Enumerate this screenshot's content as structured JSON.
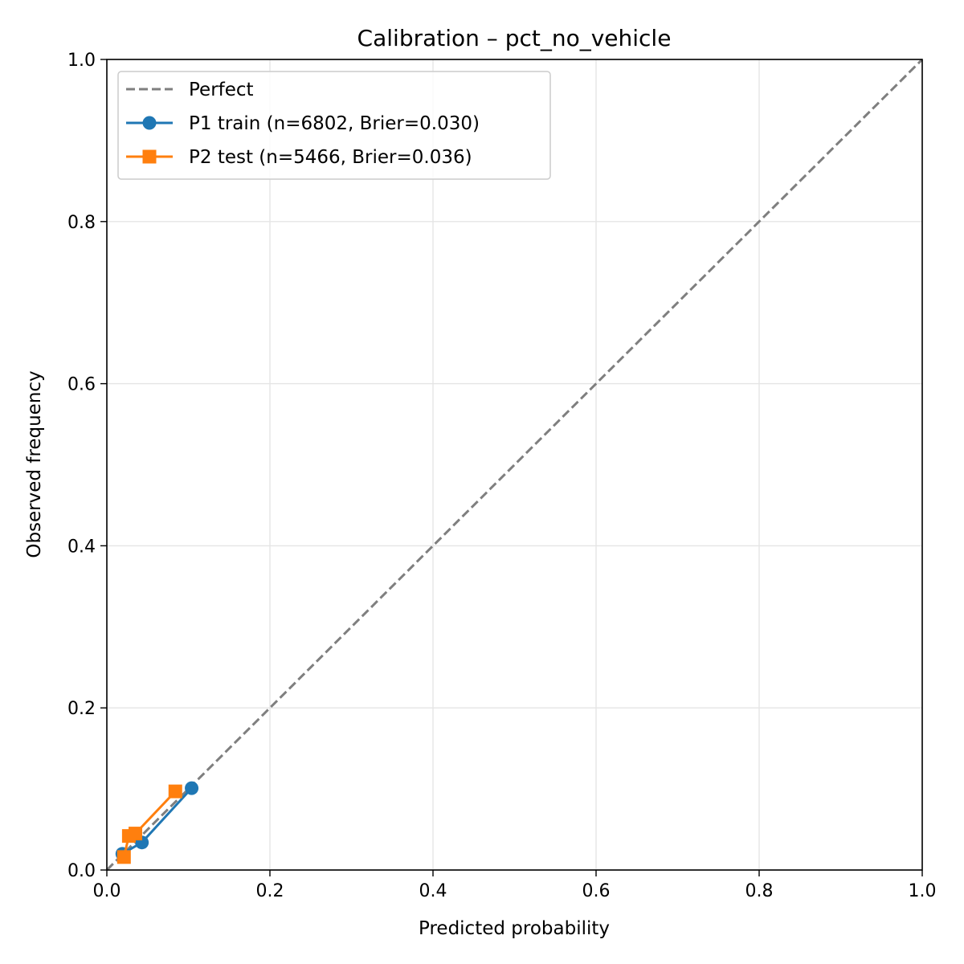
{
  "chart_data": {
    "type": "line",
    "title": "Calibration – pct_no_vehicle",
    "xlabel": "Predicted probability",
    "ylabel": "Observed frequency",
    "xlim": [
      0.0,
      1.0
    ],
    "ylim": [
      0.0,
      1.0
    ],
    "x_ticks": [
      0.0,
      0.2,
      0.4,
      0.6,
      0.8,
      1.0
    ],
    "x_tick_labels": [
      "0.0",
      "0.2",
      "0.4",
      "0.6",
      "0.8",
      "1.0"
    ],
    "y_ticks": [
      0.0,
      0.2,
      0.4,
      0.6,
      0.8,
      1.0
    ],
    "y_tick_labels": [
      "0.0",
      "0.2",
      "0.4",
      "0.6",
      "0.8",
      "1.0"
    ],
    "grid": true,
    "legend_position": "upper-left",
    "series": [
      {
        "name": "Perfect",
        "style": "dashed",
        "marker": "none",
        "color": "#7f7f7f",
        "x": [
          0.0,
          1.0
        ],
        "y": [
          0.0,
          1.0
        ]
      },
      {
        "name": "P1 train (n=6802, Brier=0.030)",
        "style": "solid",
        "marker": "circle",
        "color": "#1f77b4",
        "x": [
          0.019,
          0.043,
          0.104
        ],
        "y": [
          0.02,
          0.034,
          0.101
        ]
      },
      {
        "name": "P2 test (n=5466, Brier=0.036)",
        "style": "solid",
        "marker": "square",
        "color": "#ff7f0e",
        "x": [
          0.021,
          0.027,
          0.035,
          0.084
        ],
        "y": [
          0.016,
          0.042,
          0.045,
          0.097
        ]
      }
    ]
  }
}
